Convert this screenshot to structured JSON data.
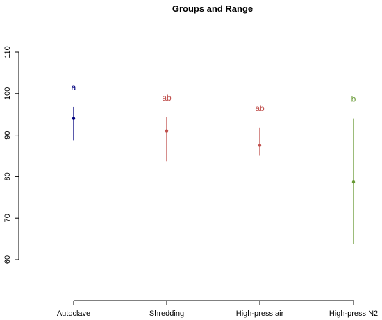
{
  "chart_data": {
    "type": "scatter",
    "title": "Groups and Range",
    "xlabel": "",
    "ylabel": "",
    "ylim": [
      60,
      110
    ],
    "yticks": [
      "60",
      "70",
      "80",
      "90",
      "100",
      "110"
    ],
    "grid": false,
    "categories": [
      "Autoclave",
      "Shredding",
      "High-press air",
      "High-press N2"
    ],
    "means": [
      94.0,
      91.0,
      87.5,
      78.7
    ],
    "lower": [
      88.7,
      83.7,
      85.0,
      63.7
    ],
    "upper": [
      96.8,
      94.3,
      91.8,
      94.0
    ],
    "group_letters": [
      "a",
      "ab",
      "ab",
      "b"
    ],
    "colors": [
      "#00007f",
      "#c0504d",
      "#c0504d",
      "#669933"
    ]
  }
}
